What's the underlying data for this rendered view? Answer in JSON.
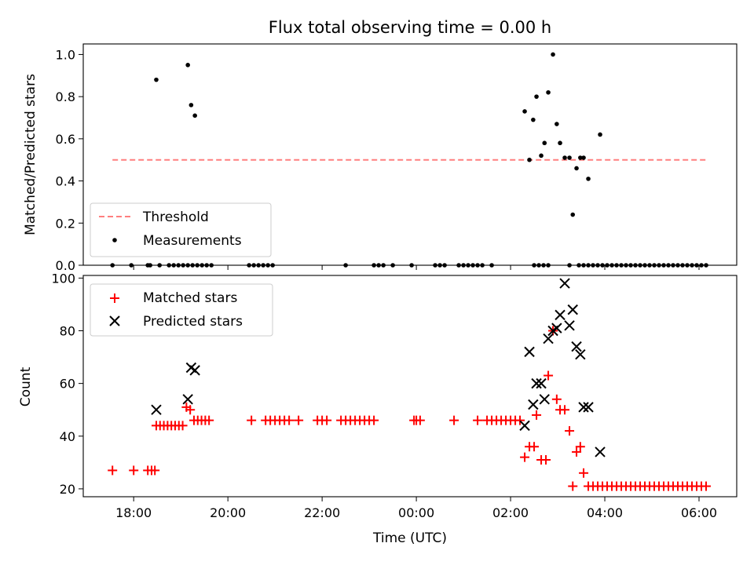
{
  "chart_data": [
    {
      "type": "scatter",
      "title": "Flux total observing time = 0.00 h",
      "xlabel": "",
      "ylabel": "Matched/Predicted stars",
      "ylim": [
        0,
        1.05
      ],
      "yticks": [
        "0.0",
        "0.2",
        "0.4",
        "0.6",
        "0.8",
        "1.0"
      ],
      "yticks_values": [
        0,
        0.2,
        0.4,
        0.6,
        0.8,
        1.0
      ],
      "legend_position": "lower-left",
      "threshold": {
        "name": "Threshold",
        "value": 0.5,
        "color": "#ff7f7f",
        "x_range": [
          -0.45,
          12.2
        ]
      },
      "series": [
        {
          "name": "Measurements",
          "color": "#000000",
          "marker": "dot",
          "points": [
            [
              -0.45,
              0
            ],
            [
              -0.05,
              0
            ],
            [
              0.3,
              0
            ],
            [
              0.35,
              0
            ],
            [
              0.55,
              0
            ],
            [
              0.75,
              0
            ],
            [
              0.85,
              0
            ],
            [
              0.95,
              0
            ],
            [
              1.05,
              0
            ],
            [
              1.15,
              0
            ],
            [
              1.25,
              0
            ],
            [
              1.35,
              0
            ],
            [
              1.45,
              0
            ],
            [
              1.55,
              0
            ],
            [
              1.65,
              0
            ],
            [
              2.45,
              0
            ],
            [
              2.55,
              0
            ],
            [
              2.65,
              0
            ],
            [
              2.75,
              0
            ],
            [
              2.85,
              0
            ],
            [
              2.95,
              0
            ],
            [
              4.5,
              0
            ],
            [
              5.1,
              0
            ],
            [
              5.2,
              0
            ],
            [
              5.3,
              0
            ],
            [
              5.5,
              0
            ],
            [
              5.9,
              0
            ],
            [
              6.4,
              0
            ],
            [
              6.5,
              0
            ],
            [
              6.6,
              0
            ],
            [
              6.9,
              0
            ],
            [
              7.0,
              0
            ],
            [
              7.1,
              0
            ],
            [
              7.2,
              0
            ],
            [
              7.3,
              0
            ],
            [
              7.4,
              0
            ],
            [
              7.6,
              0
            ],
            [
              8.5,
              0
            ],
            [
              8.6,
              0
            ],
            [
              8.7,
              0
            ],
            [
              8.8,
              0
            ],
            [
              9.25,
              0
            ],
            [
              9.45,
              0
            ],
            [
              9.55,
              0
            ],
            [
              9.65,
              0
            ],
            [
              9.75,
              0
            ],
            [
              9.85,
              0
            ],
            [
              9.95,
              0
            ],
            [
              10.05,
              0
            ],
            [
              10.15,
              0
            ],
            [
              10.25,
              0
            ],
            [
              10.35,
              0
            ],
            [
              10.45,
              0
            ],
            [
              10.55,
              0
            ],
            [
              10.65,
              0
            ],
            [
              10.75,
              0
            ],
            [
              10.85,
              0
            ],
            [
              10.95,
              0
            ],
            [
              11.05,
              0
            ],
            [
              11.15,
              0
            ],
            [
              11.25,
              0
            ],
            [
              11.35,
              0
            ],
            [
              11.45,
              0
            ],
            [
              11.55,
              0
            ],
            [
              11.65,
              0
            ],
            [
              11.75,
              0
            ],
            [
              11.85,
              0
            ],
            [
              11.95,
              0
            ],
            [
              12.05,
              0
            ],
            [
              12.15,
              0
            ],
            [
              0.48,
              0.88
            ],
            [
              1.15,
              0.95
            ],
            [
              1.22,
              0.76
            ],
            [
              1.3,
              0.71
            ],
            [
              8.3,
              0.73
            ],
            [
              8.4,
              0.5
            ],
            [
              8.48,
              0.69
            ],
            [
              8.55,
              0.8
            ],
            [
              8.65,
              0.52
            ],
            [
              8.72,
              0.58
            ],
            [
              8.8,
              0.82
            ],
            [
              8.9,
              1.0
            ],
            [
              8.98,
              0.67
            ],
            [
              9.05,
              0.58
            ],
            [
              9.15,
              0.51
            ],
            [
              9.25,
              0.51
            ],
            [
              9.32,
              0.24
            ],
            [
              9.4,
              0.46
            ],
            [
              9.48,
              0.51
            ],
            [
              9.55,
              0.51
            ],
            [
              9.65,
              0.41
            ],
            [
              9.9,
              0.62
            ]
          ]
        }
      ]
    },
    {
      "type": "scatter",
      "title": "",
      "xlabel": "Time (UTC)",
      "ylabel": "Count",
      "ylim": [
        17,
        101
      ],
      "yticks": [
        "20",
        "40",
        "60",
        "80",
        "100"
      ],
      "yticks_values": [
        20,
        40,
        60,
        80,
        100
      ],
      "xlim": [
        -1.07,
        12.8
      ],
      "xticks": [
        "18:00",
        "20:00",
        "22:00",
        "00:00",
        "02:00",
        "04:00",
        "06:00"
      ],
      "xticks_values": [
        0,
        2,
        4,
        6,
        8,
        10,
        12
      ],
      "legend_position": "upper-left",
      "series": [
        {
          "name": "Matched stars",
          "color": "#ff0000",
          "marker": "plus",
          "points": [
            [
              -0.45,
              27
            ],
            [
              0.0,
              27
            ],
            [
              0.3,
              27
            ],
            [
              0.38,
              27
            ],
            [
              0.45,
              27
            ],
            [
              0.48,
              44
            ],
            [
              0.56,
              44
            ],
            [
              0.64,
              44
            ],
            [
              0.72,
              44
            ],
            [
              0.8,
              44
            ],
            [
              0.88,
              44
            ],
            [
              0.96,
              44
            ],
            [
              1.04,
              44
            ],
            [
              1.12,
              51
            ],
            [
              1.2,
              50
            ],
            [
              1.28,
              46
            ],
            [
              1.36,
              46
            ],
            [
              1.44,
              46
            ],
            [
              1.52,
              46
            ],
            [
              1.6,
              46
            ],
            [
              2.5,
              46
            ],
            [
              2.8,
              46
            ],
            [
              2.9,
              46
            ],
            [
              3.0,
              46
            ],
            [
              3.1,
              46
            ],
            [
              3.2,
              46
            ],
            [
              3.3,
              46
            ],
            [
              3.5,
              46
            ],
            [
              3.9,
              46
            ],
            [
              4.0,
              46
            ],
            [
              4.1,
              46
            ],
            [
              4.4,
              46
            ],
            [
              4.5,
              46
            ],
            [
              4.6,
              46
            ],
            [
              4.7,
              46
            ],
            [
              4.8,
              46
            ],
            [
              4.9,
              46
            ],
            [
              5.0,
              46
            ],
            [
              5.1,
              46
            ],
            [
              5.95,
              46
            ],
            [
              6.0,
              46
            ],
            [
              6.08,
              46
            ],
            [
              6.8,
              46
            ],
            [
              7.3,
              46
            ],
            [
              7.5,
              46
            ],
            [
              7.6,
              46
            ],
            [
              7.7,
              46
            ],
            [
              7.8,
              46
            ],
            [
              7.9,
              46
            ],
            [
              8.0,
              46
            ],
            [
              8.1,
              46
            ],
            [
              8.2,
              46
            ],
            [
              8.3,
              32
            ],
            [
              8.4,
              36
            ],
            [
              8.5,
              36
            ],
            [
              8.55,
              48
            ],
            [
              8.65,
              31
            ],
            [
              8.75,
              31
            ],
            [
              8.8,
              63
            ],
            [
              8.9,
              80
            ],
            [
              8.98,
              54
            ],
            [
              9.05,
              50
            ],
            [
              9.15,
              50
            ],
            [
              9.25,
              42
            ],
            [
              9.32,
              21
            ],
            [
              9.4,
              34
            ],
            [
              9.48,
              36
            ],
            [
              9.55,
              26
            ],
            [
              9.65,
              21
            ],
            [
              9.75,
              21
            ],
            [
              9.85,
              21
            ],
            [
              9.95,
              21
            ],
            [
              10.05,
              21
            ],
            [
              10.15,
              21
            ],
            [
              10.25,
              21
            ],
            [
              10.35,
              21
            ],
            [
              10.45,
              21
            ],
            [
              10.55,
              21
            ],
            [
              10.65,
              21
            ],
            [
              10.75,
              21
            ],
            [
              10.85,
              21
            ],
            [
              10.95,
              21
            ],
            [
              11.05,
              21
            ],
            [
              11.15,
              21
            ],
            [
              11.25,
              21
            ],
            [
              11.35,
              21
            ],
            [
              11.45,
              21
            ],
            [
              11.55,
              21
            ],
            [
              11.65,
              21
            ],
            [
              11.75,
              21
            ],
            [
              11.85,
              21
            ],
            [
              11.95,
              21
            ],
            [
              12.05,
              21
            ],
            [
              12.15,
              21
            ]
          ]
        },
        {
          "name": "Predicted stars",
          "color": "#000000",
          "marker": "x",
          "points": [
            [
              0.48,
              50
            ],
            [
              1.15,
              54
            ],
            [
              1.22,
              66
            ],
            [
              1.3,
              65
            ],
            [
              8.3,
              44
            ],
            [
              8.4,
              72
            ],
            [
              8.48,
              52
            ],
            [
              8.55,
              60
            ],
            [
              8.65,
              60
            ],
            [
              8.72,
              54
            ],
            [
              8.8,
              77
            ],
            [
              8.9,
              80
            ],
            [
              8.98,
              81
            ],
            [
              9.05,
              86
            ],
            [
              9.15,
              98
            ],
            [
              9.25,
              82
            ],
            [
              9.32,
              88
            ],
            [
              9.4,
              74
            ],
            [
              9.48,
              71
            ],
            [
              9.55,
              51
            ],
            [
              9.65,
              51
            ],
            [
              9.9,
              34
            ]
          ]
        }
      ]
    }
  ]
}
